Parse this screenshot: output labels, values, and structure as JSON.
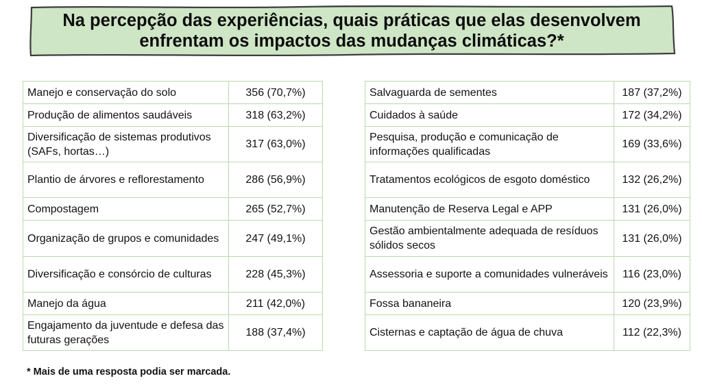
{
  "title": {
    "line1": "Na percepção das experiências, quais práticas que elas desenvolvem",
    "line2": "enfrentam os impactos das mudanças climáticas?*"
  },
  "colors": {
    "banner_fill": "#cfe6c6",
    "banner_stroke": "#3c3c3c",
    "table_border": "#b9d8ae"
  },
  "left_table": [
    {
      "label": "Manejo e conservação do solo",
      "value": "356 (70,7%)"
    },
    {
      "label": "Produção de alimentos saudáveis",
      "value": "318 (63,2%)"
    },
    {
      "label": "Diversificação de sistemas produtivos (SAFs, hortas…)",
      "value": "317 (63,0%)"
    },
    {
      "label": "Plantio de árvores e reflorestamento",
      "value": "286 (56,9%)"
    },
    {
      "label": "Compostagem",
      "value": "265 (52,7%)"
    },
    {
      "label": "Organização de grupos e comunidades",
      "value": "247 (49,1%)"
    },
    {
      "label": "Diversificação e consórcio de culturas",
      "value": "228 (45,3%)"
    },
    {
      "label": "Manejo da água",
      "value": "211 (42,0%)"
    },
    {
      "label": "Engajamento da juventude e defesa das futuras gerações",
      "value": "188 (37,4%)"
    }
  ],
  "right_table": [
    {
      "label": "Salvaguarda de sementes",
      "value": "187 (37,2%)"
    },
    {
      "label": "Cuidados à saúde",
      "value": "172 (34,2%)"
    },
    {
      "label": "Pesquisa, produção e comunicação de informações qualificadas",
      "value": "169 (33,6%)"
    },
    {
      "label": "Tratamentos ecológicos de esgoto doméstico",
      "value": "132 (26,2%)"
    },
    {
      "label": "Manutenção de Reserva Legal e APP",
      "value": "131 (26,0%)"
    },
    {
      "label": "Gestão ambientalmente adequada de resíduos sólidos secos",
      "value": "131 (26,0%)"
    },
    {
      "label": "Assessoria e suporte a comunidades vulneráveis",
      "value": "116 (23,0%)"
    },
    {
      "label": "Fossa bananeira",
      "value": "120 (23,9%)"
    },
    {
      "label": "Cisternas e captação de água de chuva",
      "value": "112 (22,3%)"
    }
  ],
  "footnote": "* Mais de uma resposta podia ser marcada."
}
